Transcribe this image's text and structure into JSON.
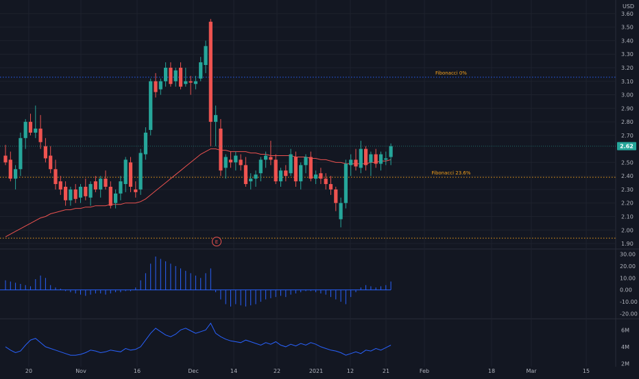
{
  "currency_label": "USD",
  "colors": {
    "background": "#131722",
    "grid": "#1e222d",
    "up": "#26a69a",
    "down": "#ef5350",
    "ma_line": "#ef5350",
    "fib_upper_line": "#2962ff",
    "fib_lower_line": "#f7a21b",
    "fib_text": "#f7a21b",
    "histogram": "#2962ff",
    "volume_line": "#2962ff",
    "axis_text": "#b2b5be",
    "earnings_marker": "#ef5350",
    "price_tag_bg": "#26a69a"
  },
  "price_tag": "2.62",
  "earnings_marker_label": "E",
  "chart_data": {
    "type": "candlestick",
    "x_tick_labels": [
      "20",
      "Nov",
      "16",
      "Dec",
      "14",
      "22",
      "2021",
      "12",
      "21",
      "Feb",
      "18",
      "Mar",
      "15"
    ],
    "y_tick_labels": [
      "3.60",
      "3.50",
      "3.40",
      "3.30",
      "3.20",
      "3.10",
      "3.00",
      "2.90",
      "2.80",
      "2.70",
      "2.50",
      "2.40",
      "2.30",
      "2.20",
      "2.10",
      "2.00",
      "1.90"
    ],
    "y_range": [
      1.88,
      3.65
    ],
    "last_price": 2.62,
    "fibonacci_levels": [
      {
        "label": "Fibonacci 0%",
        "price": 3.13
      },
      {
        "label": "Fibonacci 23.6%",
        "price": 2.39
      },
      {
        "label": "",
        "price": 1.94
      }
    ],
    "ohlc": [
      [
        2.55,
        2.63,
        2.48,
        2.5
      ],
      [
        2.52,
        2.58,
        2.36,
        2.38
      ],
      [
        2.38,
        2.48,
        2.3,
        2.45
      ],
      [
        2.45,
        2.72,
        2.4,
        2.68
      ],
      [
        2.68,
        2.82,
        2.6,
        2.8
      ],
      [
        2.8,
        2.86,
        2.7,
        2.72
      ],
      [
        2.72,
        2.92,
        2.68,
        2.75
      ],
      [
        2.75,
        2.85,
        2.6,
        2.65
      ],
      [
        2.62,
        2.68,
        2.5,
        2.53
      ],
      [
        2.55,
        2.62,
        2.42,
        2.45
      ],
      [
        2.45,
        2.52,
        2.3,
        2.34
      ],
      [
        2.36,
        2.4,
        2.26,
        2.3
      ],
      [
        2.32,
        2.36,
        2.18,
        2.22
      ],
      [
        2.22,
        2.32,
        2.18,
        2.3
      ],
      [
        2.3,
        2.34,
        2.2,
        2.23
      ],
      [
        2.24,
        2.34,
        2.2,
        2.32
      ],
      [
        2.32,
        2.38,
        2.22,
        2.25
      ],
      [
        2.24,
        2.36,
        2.18,
        2.34
      ],
      [
        2.36,
        2.4,
        2.28,
        2.3
      ],
      [
        2.3,
        2.4,
        2.24,
        2.38
      ],
      [
        2.38,
        2.44,
        2.3,
        2.32
      ],
      [
        2.32,
        2.36,
        2.16,
        2.18
      ],
      [
        2.2,
        2.3,
        2.16,
        2.27
      ],
      [
        2.27,
        2.4,
        2.22,
        2.36
      ],
      [
        2.34,
        2.54,
        2.28,
        2.52
      ],
      [
        2.5,
        2.54,
        2.28,
        2.32
      ],
      [
        2.3,
        2.36,
        2.24,
        2.28
      ],
      [
        2.3,
        2.6,
        2.26,
        2.57
      ],
      [
        2.56,
        2.76,
        2.52,
        2.72
      ],
      [
        2.74,
        3.12,
        2.7,
        3.1
      ],
      [
        3.1,
        3.16,
        2.98,
        3.02
      ],
      [
        3.04,
        3.12,
        3.0,
        3.1
      ],
      [
        3.1,
        3.24,
        3.06,
        3.2
      ],
      [
        3.2,
        3.24,
        3.06,
        3.08
      ],
      [
        3.1,
        3.2,
        3.06,
        3.18
      ],
      [
        3.2,
        3.24,
        3.04,
        3.06
      ],
      [
        3.08,
        3.2,
        3.06,
        3.1
      ],
      [
        3.1,
        3.14,
        3.0,
        3.09
      ],
      [
        3.08,
        3.14,
        3.04,
        3.1
      ],
      [
        3.12,
        3.28,
        3.1,
        3.24
      ],
      [
        3.22,
        3.4,
        3.16,
        3.36
      ],
      [
        3.54,
        3.56,
        2.62,
        2.8
      ],
      [
        2.8,
        2.92,
        2.62,
        2.85
      ],
      [
        2.75,
        2.82,
        2.4,
        2.44
      ],
      [
        2.46,
        2.56,
        2.38,
        2.54
      ],
      [
        2.52,
        2.58,
        2.46,
        2.5
      ],
      [
        2.5,
        2.58,
        2.44,
        2.55
      ],
      [
        2.52,
        2.56,
        2.44,
        2.48
      ],
      [
        2.48,
        2.54,
        2.32,
        2.34
      ],
      [
        2.36,
        2.42,
        2.3,
        2.38
      ],
      [
        2.38,
        2.44,
        2.32,
        2.41
      ],
      [
        2.42,
        2.54,
        2.36,
        2.52
      ],
      [
        2.52,
        2.58,
        2.46,
        2.55
      ],
      [
        2.54,
        2.66,
        2.48,
        2.52
      ],
      [
        2.52,
        2.56,
        2.34,
        2.36
      ],
      [
        2.36,
        2.46,
        2.32,
        2.44
      ],
      [
        2.44,
        2.48,
        2.36,
        2.4
      ],
      [
        2.42,
        2.6,
        2.4,
        2.56
      ],
      [
        2.54,
        2.58,
        2.32,
        2.36
      ],
      [
        2.36,
        2.5,
        2.3,
        2.48
      ],
      [
        2.48,
        2.56,
        2.42,
        2.54
      ],
      [
        2.54,
        2.58,
        2.36,
        2.38
      ],
      [
        2.38,
        2.44,
        2.34,
        2.41
      ],
      [
        2.42,
        2.46,
        2.34,
        2.38
      ],
      [
        2.38,
        2.42,
        2.3,
        2.34
      ],
      [
        2.34,
        2.4,
        2.26,
        2.3
      ],
      [
        2.3,
        2.32,
        2.14,
        2.2
      ],
      [
        2.08,
        2.24,
        2.02,
        2.2
      ],
      [
        2.2,
        2.52,
        2.16,
        2.49
      ],
      [
        2.48,
        2.56,
        2.4,
        2.52
      ],
      [
        2.52,
        2.6,
        2.44,
        2.47
      ],
      [
        2.46,
        2.66,
        2.42,
        2.6
      ],
      [
        2.6,
        2.62,
        2.44,
        2.48
      ],
      [
        2.5,
        2.58,
        2.4,
        2.56
      ],
      [
        2.56,
        2.6,
        2.46,
        2.49
      ],
      [
        2.49,
        2.58,
        2.44,
        2.56
      ],
      [
        2.52,
        2.58,
        2.48,
        2.53
      ],
      [
        2.54,
        2.64,
        2.48,
        2.62
      ]
    ],
    "moving_average": [
      1.95,
      1.97,
      1.99,
      2.01,
      2.03,
      2.05,
      2.07,
      2.09,
      2.1,
      2.12,
      2.13,
      2.14,
      2.15,
      2.15,
      2.16,
      2.16,
      2.17,
      2.17,
      2.18,
      2.18,
      2.18,
      2.19,
      2.19,
      2.19,
      2.2,
      2.2,
      2.2,
      2.21,
      2.23,
      2.26,
      2.29,
      2.32,
      2.35,
      2.38,
      2.41,
      2.44,
      2.47,
      2.5,
      2.53,
      2.56,
      2.58,
      2.6,
      2.6,
      2.59,
      2.59,
      2.58,
      2.58,
      2.58,
      2.58,
      2.57,
      2.57,
      2.56,
      2.56,
      2.55,
      2.55,
      2.55,
      2.55,
      2.55,
      2.54,
      2.54,
      2.54,
      2.53,
      2.53,
      2.52,
      2.52,
      2.51,
      2.5,
      2.5,
      2.49,
      2.49,
      2.49,
      2.49,
      2.49,
      2.5,
      2.5,
      2.51,
      2.51,
      2.52
    ],
    "oscillator": {
      "y_tick_labels": [
        "30.00",
        "20.00",
        "10.00",
        "0.00",
        "-10.00",
        "-20.00"
      ],
      "range": [
        -22,
        32
      ],
      "values": [
        8,
        7,
        6,
        5,
        4,
        3,
        9,
        12,
        10,
        4,
        2,
        1,
        -1,
        -2,
        -3,
        -4,
        -5,
        -4,
        -3,
        -3,
        -4,
        -3,
        -2,
        -2,
        -1,
        -1,
        2,
        8,
        14,
        22,
        28,
        26,
        24,
        22,
        20,
        18,
        16,
        14,
        12,
        10,
        14,
        18,
        -2,
        -8,
        -12,
        -14,
        -12,
        -13,
        -14,
        -13,
        -12,
        -10,
        -8,
        -7,
        -6,
        -5,
        -6,
        -4,
        -3,
        -2,
        -1,
        -1,
        -2,
        -3,
        -4,
        -6,
        -8,
        -10,
        -12,
        -6,
        -2,
        2,
        4,
        3,
        2,
        3,
        4,
        7
      ],
      "color": "#2962ff"
    },
    "volume": {
      "y_tick_labels": [
        "6M",
        "4M",
        "2M"
      ],
      "range": [
        1.8,
        7.0
      ],
      "values": [
        4.0,
        3.6,
        3.3,
        3.5,
        4.2,
        4.8,
        5.0,
        4.5,
        4.0,
        3.8,
        3.6,
        3.4,
        3.2,
        3.0,
        3.0,
        3.1,
        3.3,
        3.6,
        3.5,
        3.3,
        3.4,
        3.6,
        3.5,
        3.4,
        3.8,
        3.6,
        3.7,
        4.0,
        4.8,
        5.6,
        6.2,
        5.8,
        5.4,
        5.2,
        5.5,
        6.0,
        6.2,
        5.9,
        5.6,
        5.8,
        6.0,
        6.8,
        5.6,
        5.2,
        4.9,
        4.7,
        4.6,
        4.5,
        4.8,
        4.6,
        4.4,
        4.2,
        4.5,
        4.3,
        4.6,
        4.2,
        4.0,
        4.3,
        4.1,
        4.4,
        4.2,
        4.5,
        4.3,
        4.0,
        3.8,
        3.6,
        3.5,
        3.3,
        3.0,
        3.2,
        3.4,
        3.2,
        3.6,
        3.5,
        3.8,
        3.6,
        3.9,
        4.2
      ],
      "color": "#2962ff"
    }
  }
}
